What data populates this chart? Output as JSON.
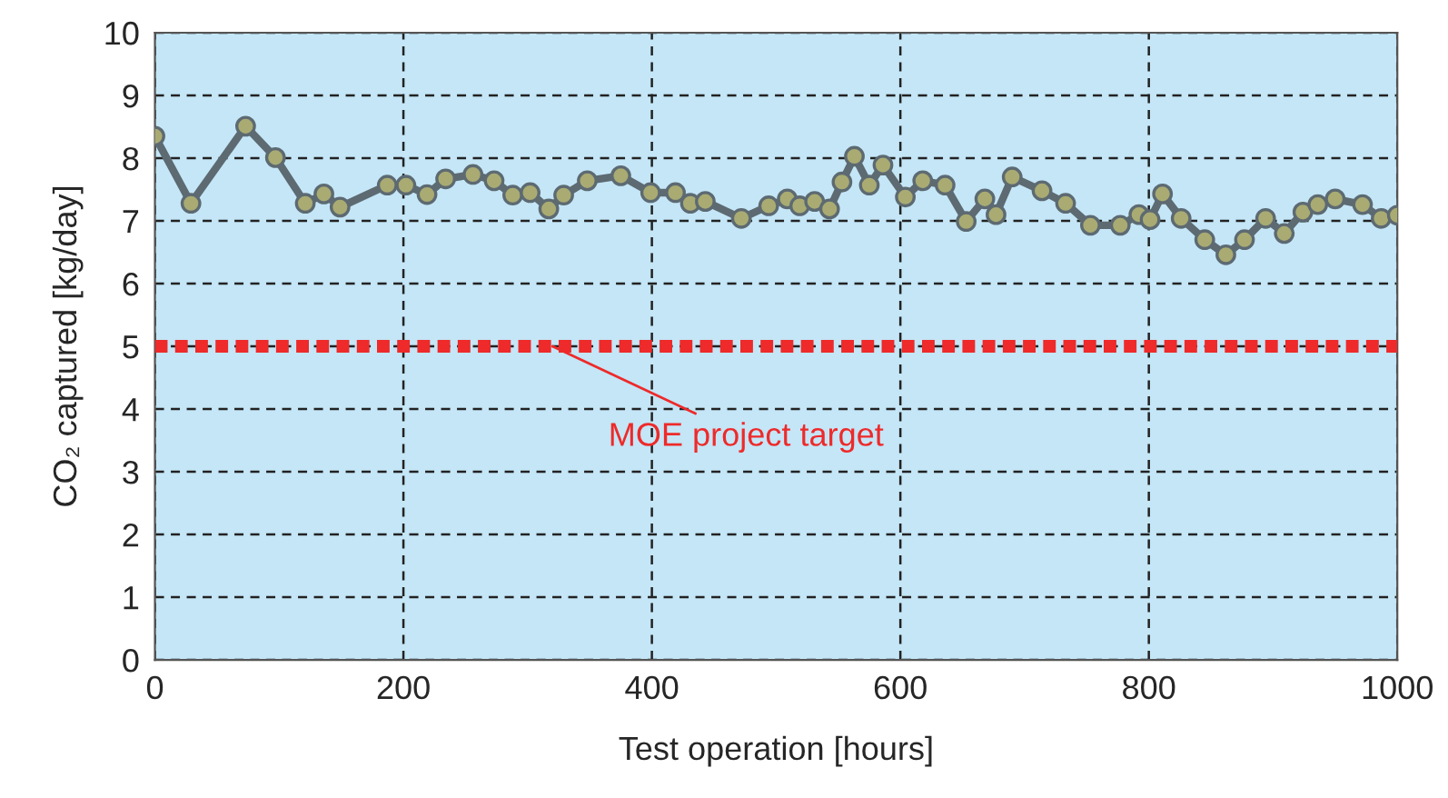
{
  "chart_data": {
    "type": "line",
    "xlabel": "Test operation [hours]",
    "ylabel": "CO₂ captured [kg/day]",
    "xlim": [
      0,
      1000
    ],
    "xticks": [
      0,
      200,
      400,
      600,
      800,
      1000
    ],
    "ylim": [
      0,
      10
    ],
    "yticks": [
      0,
      1,
      2,
      3,
      4,
      5,
      6,
      7,
      8,
      9,
      10
    ],
    "grid": true,
    "marker": "circle",
    "line_style": "solid",
    "series": [
      {
        "color": "#5d6a72",
        "x": [
          0,
          29,
          73,
          97,
          121,
          136,
          149,
          187,
          202,
          219,
          234,
          256,
          273,
          288,
          302,
          317,
          329,
          348,
          375,
          399,
          419,
          431,
          443,
          472,
          494,
          509,
          519,
          531,
          543,
          553,
          563,
          575,
          586,
          604,
          618,
          636,
          653,
          668,
          677,
          690,
          714,
          733,
          753,
          777,
          792,
          801,
          811,
          826,
          845,
          862,
          877,
          894,
          909,
          924,
          936,
          950,
          972,
          987,
          1000
        ],
        "values": [
          8.35,
          7.28,
          8.51,
          8.01,
          7.28,
          7.43,
          7.22,
          7.57,
          7.57,
          7.42,
          7.67,
          7.74,
          7.64,
          7.41,
          7.45,
          7.19,
          7.41,
          7.64,
          7.72,
          7.45,
          7.45,
          7.28,
          7.31,
          7.04,
          7.24,
          7.35,
          7.24,
          7.31,
          7.19,
          7.62,
          8.03,
          7.57,
          7.89,
          7.38,
          7.64,
          7.57,
          6.99,
          7.35,
          7.1,
          7.7,
          7.48,
          7.28,
          6.93,
          6.93,
          7.1,
          7.02,
          7.43,
          7.04,
          6.7,
          6.46,
          6.7,
          7.04,
          6.8,
          7.14,
          7.26,
          7.35,
          7.26,
          7.04,
          7.09
        ]
      }
    ],
    "ref_lines": [
      {
        "axis": "y",
        "value": 5,
        "label": "MOE project target",
        "color": "#ee2a2a",
        "line_style": "dotted"
      }
    ]
  }
}
